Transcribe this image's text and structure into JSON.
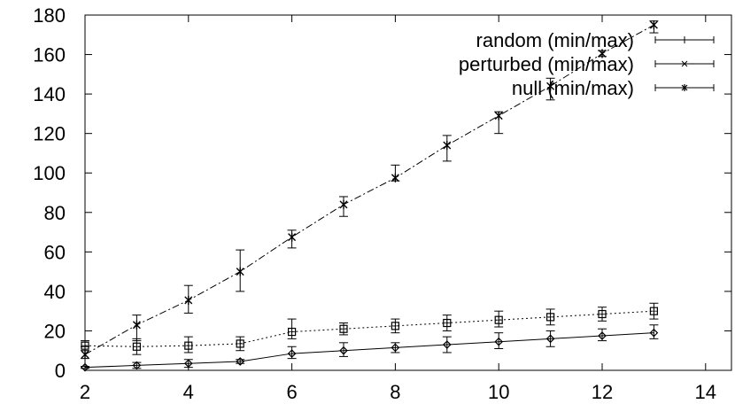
{
  "chart_data": {
    "type": "line",
    "title": "",
    "xlabel": "",
    "ylabel": "",
    "xlim": [
      2,
      14.5
    ],
    "ylim": [
      0,
      180
    ],
    "xticks": [
      2,
      4,
      6,
      8,
      10,
      12,
      14
    ],
    "yticks": [
      0,
      20,
      40,
      60,
      80,
      100,
      120,
      140,
      160,
      180
    ],
    "grid": false,
    "legend_position": "top-right",
    "series": [
      {
        "name": "random (min/max)",
        "marker": "diamond",
        "dash": "solid",
        "x": [
          2,
          3,
          4,
          5,
          6,
          7,
          8,
          9,
          10,
          11,
          12,
          13
        ],
        "y": [
          1.5,
          2.5,
          3.5,
          4.5,
          8.5,
          10,
          11.5,
          13,
          14.5,
          16,
          17.5,
          19
        ],
        "err_min": [
          1,
          1,
          1.5,
          3.5,
          6,
          7,
          9,
          9,
          11,
          12,
          15,
          16
        ],
        "err_max": [
          2,
          4,
          5.5,
          5.5,
          12,
          14,
          14,
          17,
          19,
          20,
          21,
          23
        ]
      },
      {
        "name": "perturbed (min/max)",
        "marker": "square",
        "dash": "dotted",
        "x": [
          2,
          3,
          4,
          5,
          6,
          7,
          8,
          9,
          10,
          11,
          12,
          13
        ],
        "y": [
          12.5,
          12,
          12.5,
          13.5,
          19.5,
          21,
          22.5,
          24,
          25.5,
          27,
          28.5,
          30
        ],
        "err_min": [
          10,
          8,
          9,
          10,
          16,
          18,
          19,
          20,
          22,
          23,
          25,
          26
        ],
        "err_max": [
          15,
          16,
          17,
          17,
          26,
          24,
          26,
          28,
          30,
          31,
          32,
          34
        ]
      },
      {
        "name": "null (min/max)",
        "marker": "asterisk",
        "dash": "dashdot",
        "x": [
          2,
          3,
          4,
          5,
          6,
          7,
          8,
          9,
          10,
          11,
          12,
          13
        ],
        "y": [
          8,
          23,
          35.5,
          50,
          67.5,
          84,
          97.5,
          114,
          129,
          144,
          160.5,
          175
        ],
        "err_min": [
          6,
          15,
          29,
          40,
          62,
          78,
          96,
          106,
          120,
          137,
          159,
          171
        ],
        "err_max": [
          12,
          28,
          43,
          61,
          71,
          88,
          104,
          119,
          131,
          148,
          162,
          177
        ]
      }
    ]
  }
}
